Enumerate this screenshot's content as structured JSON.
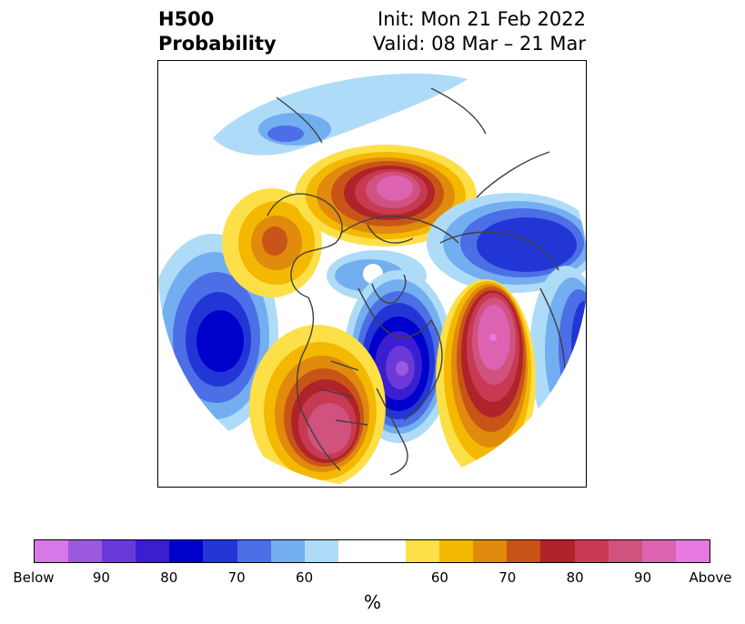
{
  "header": {
    "title_line1": "H500",
    "title_line2": "Probability",
    "init": "Init: Mon 21 Feb 2022",
    "valid": "Valid: 08 Mar – 21 Mar"
  },
  "colorbar": {
    "colors": [
      "#d877e8",
      "#9b59e0",
      "#6a39d8",
      "#3a1ed0",
      "#0000cc",
      "#2236d6",
      "#4c6ee6",
      "#73aef0",
      "#aedcf8",
      "#ffffff",
      "#ffffff",
      "#fde047",
      "#f4b800",
      "#e08a0e",
      "#c95418",
      "#b0232a",
      "#c73a52",
      "#d0527e",
      "#dd62b2",
      "#e879e0"
    ],
    "labels": [
      "Below",
      "90",
      "80",
      "70",
      "60",
      "",
      "60",
      "70",
      "80",
      "90",
      "Above"
    ],
    "unit": "%"
  },
  "map": {
    "type": "polar-stereographic probability anomaly",
    "variable": "H500",
    "below_color": "#0000cc",
    "above_color": "#c73a52"
  }
}
